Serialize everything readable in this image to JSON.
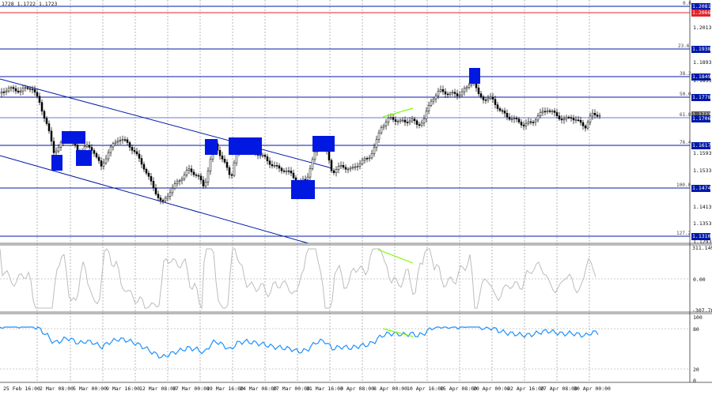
{
  "header": {
    "ohlc_text": "1728 1.1722 1.1723"
  },
  "colors": {
    "level_line": "#0018a8",
    "channel_line": "#0018a8",
    "candle": "#000000",
    "cci_line": "#bdbdbd",
    "rsi_line": "#1e90ff",
    "divergence": "#7cfc00",
    "box": "#0018e0",
    "red_label": "#e0242c"
  },
  "price_axis": {
    "ticks": [
      "1.2013",
      "1.1893",
      "1.1833",
      "1.1593",
      "1.1533",
      "1.1413",
      "1.1353",
      "1.1293"
    ]
  },
  "price_labels": [
    {
      "text": "1.2081",
      "style": "blue"
    },
    {
      "text": "1.2066",
      "style": "red"
    },
    {
      "text": "1.1938",
      "style": "blue"
    },
    {
      "text": "1.1849",
      "style": "blue"
    },
    {
      "text": "1.1778",
      "style": "blue"
    },
    {
      "text": "1.1723",
      "style": "grey"
    },
    {
      "text": "1.1706",
      "style": "blue"
    },
    {
      "text": "1.1617",
      "style": "blue"
    },
    {
      "text": "1.1474",
      "style": "blue"
    },
    {
      "text": "1.1310",
      "style": "blue"
    }
  ],
  "fib_labels": [
    "0.0",
    "23.6",
    "38.2",
    "50.0",
    "61.8",
    "76.4",
    "100.0",
    "127.2"
  ],
  "cci_axis": {
    "top": "311.1497",
    "mid": "0.00",
    "bottom": "-307.704"
  },
  "rsi_axis": {
    "top": "100",
    "upper": "80",
    "lower": "20",
    "bottom": "0"
  },
  "date_labels": [
    "25 Feb 16:00",
    "2 Mar 08:00",
    "5 Mar 00:00",
    "9 Mar 16:00",
    "12 Mar 08:00",
    "17 Mar 00:00",
    "19 Mar 16:00",
    "24 Mar 08:00",
    "27 Mar 00:00",
    "31 Mar 16:00",
    "3 Apr 08:00",
    "8 Apr 00:00",
    "10 Apr 16:00",
    "15 Apr 08:00",
    "20 Apr 00:00",
    "22 Apr 16:00",
    "27 Apr 08:00",
    "30 Apr 00:00"
  ]
}
